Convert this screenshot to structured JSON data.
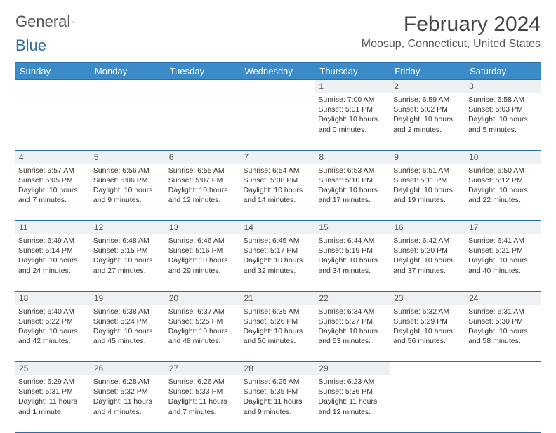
{
  "logo": {
    "word1": "General",
    "word2": "Blue"
  },
  "title": "February 2024",
  "location": "Moosup, Connecticut, United States",
  "colors": {
    "header_bg": "#3b8bc9",
    "header_border": "#2e6da4",
    "daynum_bg": "#eef1f3",
    "text": "#333333",
    "background": "#ffffff"
  },
  "dayHeaders": [
    "Sunday",
    "Monday",
    "Tuesday",
    "Wednesday",
    "Thursday",
    "Friday",
    "Saturday"
  ],
  "weeks": [
    [
      null,
      null,
      null,
      null,
      {
        "n": "1",
        "sr": "Sunrise: 7:00 AM",
        "ss": "Sunset: 5:01 PM",
        "dl": "Daylight: 10 hours and 0 minutes."
      },
      {
        "n": "2",
        "sr": "Sunrise: 6:59 AM",
        "ss": "Sunset: 5:02 PM",
        "dl": "Daylight: 10 hours and 2 minutes."
      },
      {
        "n": "3",
        "sr": "Sunrise: 6:58 AM",
        "ss": "Sunset: 5:03 PM",
        "dl": "Daylight: 10 hours and 5 minutes."
      }
    ],
    [
      {
        "n": "4",
        "sr": "Sunrise: 6:57 AM",
        "ss": "Sunset: 5:05 PM",
        "dl": "Daylight: 10 hours and 7 minutes."
      },
      {
        "n": "5",
        "sr": "Sunrise: 6:56 AM",
        "ss": "Sunset: 5:06 PM",
        "dl": "Daylight: 10 hours and 9 minutes."
      },
      {
        "n": "6",
        "sr": "Sunrise: 6:55 AM",
        "ss": "Sunset: 5:07 PM",
        "dl": "Daylight: 10 hours and 12 minutes."
      },
      {
        "n": "7",
        "sr": "Sunrise: 6:54 AM",
        "ss": "Sunset: 5:08 PM",
        "dl": "Daylight: 10 hours and 14 minutes."
      },
      {
        "n": "8",
        "sr": "Sunrise: 6:53 AM",
        "ss": "Sunset: 5:10 PM",
        "dl": "Daylight: 10 hours and 17 minutes."
      },
      {
        "n": "9",
        "sr": "Sunrise: 6:51 AM",
        "ss": "Sunset: 5:11 PM",
        "dl": "Daylight: 10 hours and 19 minutes."
      },
      {
        "n": "10",
        "sr": "Sunrise: 6:50 AM",
        "ss": "Sunset: 5:12 PM",
        "dl": "Daylight: 10 hours and 22 minutes."
      }
    ],
    [
      {
        "n": "11",
        "sr": "Sunrise: 6:49 AM",
        "ss": "Sunset: 5:14 PM",
        "dl": "Daylight: 10 hours and 24 minutes."
      },
      {
        "n": "12",
        "sr": "Sunrise: 6:48 AM",
        "ss": "Sunset: 5:15 PM",
        "dl": "Daylight: 10 hours and 27 minutes."
      },
      {
        "n": "13",
        "sr": "Sunrise: 6:46 AM",
        "ss": "Sunset: 5:16 PM",
        "dl": "Daylight: 10 hours and 29 minutes."
      },
      {
        "n": "14",
        "sr": "Sunrise: 6:45 AM",
        "ss": "Sunset: 5:17 PM",
        "dl": "Daylight: 10 hours and 32 minutes."
      },
      {
        "n": "15",
        "sr": "Sunrise: 6:44 AM",
        "ss": "Sunset: 5:19 PM",
        "dl": "Daylight: 10 hours and 34 minutes."
      },
      {
        "n": "16",
        "sr": "Sunrise: 6:42 AM",
        "ss": "Sunset: 5:20 PM",
        "dl": "Daylight: 10 hours and 37 minutes."
      },
      {
        "n": "17",
        "sr": "Sunrise: 6:41 AM",
        "ss": "Sunset: 5:21 PM",
        "dl": "Daylight: 10 hours and 40 minutes."
      }
    ],
    [
      {
        "n": "18",
        "sr": "Sunrise: 6:40 AM",
        "ss": "Sunset: 5:22 PM",
        "dl": "Daylight: 10 hours and 42 minutes."
      },
      {
        "n": "19",
        "sr": "Sunrise: 6:38 AM",
        "ss": "Sunset: 5:24 PM",
        "dl": "Daylight: 10 hours and 45 minutes."
      },
      {
        "n": "20",
        "sr": "Sunrise: 6:37 AM",
        "ss": "Sunset: 5:25 PM",
        "dl": "Daylight: 10 hours and 48 minutes."
      },
      {
        "n": "21",
        "sr": "Sunrise: 6:35 AM",
        "ss": "Sunset: 5:26 PM",
        "dl": "Daylight: 10 hours and 50 minutes."
      },
      {
        "n": "22",
        "sr": "Sunrise: 6:34 AM",
        "ss": "Sunset: 5:27 PM",
        "dl": "Daylight: 10 hours and 53 minutes."
      },
      {
        "n": "23",
        "sr": "Sunrise: 6:32 AM",
        "ss": "Sunset: 5:29 PM",
        "dl": "Daylight: 10 hours and 56 minutes."
      },
      {
        "n": "24",
        "sr": "Sunrise: 6:31 AM",
        "ss": "Sunset: 5:30 PM",
        "dl": "Daylight: 10 hours and 58 minutes."
      }
    ],
    [
      {
        "n": "25",
        "sr": "Sunrise: 6:29 AM",
        "ss": "Sunset: 5:31 PM",
        "dl": "Daylight: 11 hours and 1 minute."
      },
      {
        "n": "26",
        "sr": "Sunrise: 6:28 AM",
        "ss": "Sunset: 5:32 PM",
        "dl": "Daylight: 11 hours and 4 minutes."
      },
      {
        "n": "27",
        "sr": "Sunrise: 6:26 AM",
        "ss": "Sunset: 5:33 PM",
        "dl": "Daylight: 11 hours and 7 minutes."
      },
      {
        "n": "28",
        "sr": "Sunrise: 6:25 AM",
        "ss": "Sunset: 5:35 PM",
        "dl": "Daylight: 11 hours and 9 minutes."
      },
      {
        "n": "29",
        "sr": "Sunrise: 6:23 AM",
        "ss": "Sunset: 5:36 PM",
        "dl": "Daylight: 11 hours and 12 minutes."
      },
      null,
      null
    ]
  ]
}
